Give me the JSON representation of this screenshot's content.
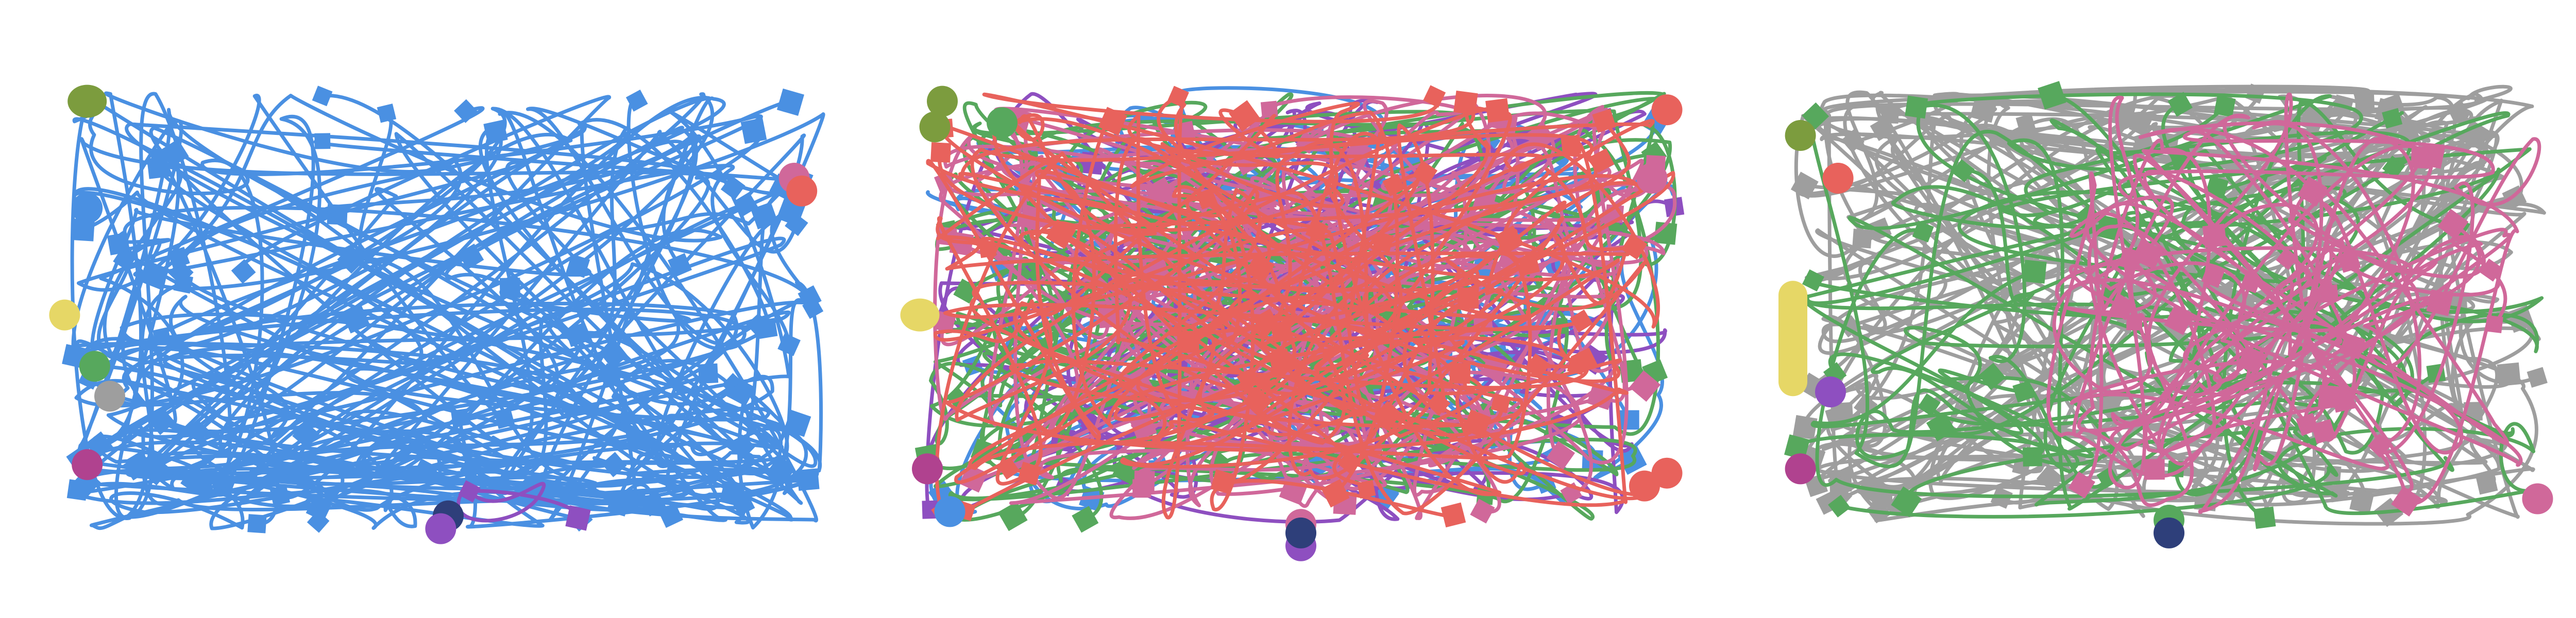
{
  "colors": {
    "blue": "#4a90e2",
    "red": "#e8625c",
    "green": "#57a85d",
    "pink": "#d0689a",
    "purple": "#8e4fc0",
    "gray": "#9e9e9e",
    "olive": "#7c9c3e",
    "yellow": "#e6d766",
    "magenta": "#b0428f",
    "navy": "#2e3f7a"
  },
  "panels": [
    {
      "name": "left",
      "traces": [
        {
          "color": "blue",
          "count": 40,
          "seed": 11,
          "density": "edges-bottom",
          "width": 7
        },
        {
          "color": "purple",
          "count": 1,
          "seed": 91,
          "density": "bottom-short",
          "width": 7
        }
      ],
      "markers": [
        {
          "color": "olive",
          "shape": "blob",
          "u": 0.02,
          "v": 0.02
        },
        {
          "color": "blue",
          "shape": "circle",
          "u": 0.02,
          "v": 0.27
        },
        {
          "color": "yellow",
          "shape": "circle",
          "u": -0.01,
          "v": 0.52
        },
        {
          "color": "green",
          "shape": "circle",
          "u": 0.03,
          "v": 0.64
        },
        {
          "color": "gray",
          "shape": "circle",
          "u": 0.05,
          "v": 0.71
        },
        {
          "color": "magenta",
          "shape": "circle",
          "u": 0.02,
          "v": 0.87
        },
        {
          "color": "pink",
          "shape": "circle",
          "u": 0.96,
          "v": 0.2
        },
        {
          "color": "red",
          "shape": "circle",
          "u": 0.97,
          "v": 0.23
        },
        {
          "color": "navy",
          "shape": "circle",
          "u": 0.5,
          "v": 0.99
        },
        {
          "color": "purple",
          "shape": "circle",
          "u": 0.49,
          "v": 1.02
        }
      ]
    },
    {
      "name": "middle",
      "traces": [
        {
          "color": "blue",
          "count": 16,
          "seed": 21,
          "density": "uniform",
          "width": 7
        },
        {
          "color": "purple",
          "count": 14,
          "seed": 22,
          "density": "uniform",
          "width": 7
        },
        {
          "color": "green",
          "count": 20,
          "seed": 23,
          "density": "uniform",
          "width": 7
        },
        {
          "color": "pink",
          "count": 22,
          "seed": 24,
          "density": "uniform",
          "width": 7
        },
        {
          "color": "red",
          "count": 24,
          "seed": 25,
          "density": "uniform",
          "width": 7
        }
      ],
      "markers": [
        {
          "color": "olive",
          "shape": "circle",
          "u": 0.02,
          "v": 0.02
        },
        {
          "color": "olive",
          "shape": "circle",
          "u": 0.01,
          "v": 0.08
        },
        {
          "color": "green",
          "shape": "circle",
          "u": 0.1,
          "v": 0.07
        },
        {
          "color": "yellow",
          "shape": "blob",
          "u": -0.01,
          "v": 0.52
        },
        {
          "color": "magenta",
          "shape": "circle",
          "u": 0.0,
          "v": 0.88
        },
        {
          "color": "blue",
          "shape": "circle",
          "u": 0.03,
          "v": 0.98
        },
        {
          "color": "red",
          "shape": "circle",
          "u": 0.99,
          "v": 0.04
        },
        {
          "color": "pink",
          "shape": "circle",
          "u": 0.97,
          "v": 0.2
        },
        {
          "color": "red",
          "shape": "circle",
          "u": 0.99,
          "v": 0.89
        },
        {
          "color": "red",
          "shape": "circle",
          "u": 0.96,
          "v": 0.92
        },
        {
          "color": "pink",
          "shape": "circle",
          "u": 0.5,
          "v": 1.01
        },
        {
          "color": "purple",
          "shape": "circle",
          "u": 0.5,
          "v": 1.06
        },
        {
          "color": "navy",
          "shape": "circle",
          "u": 0.5,
          "v": 1.03
        }
      ]
    },
    {
      "name": "right",
      "traces": [
        {
          "color": "gray",
          "count": 30,
          "seed": 31,
          "density": "edges",
          "width": 7
        },
        {
          "color": "green",
          "count": 16,
          "seed": 32,
          "density": "uniform",
          "width": 7
        },
        {
          "color": "pink",
          "count": 14,
          "seed": 33,
          "density": "right",
          "width": 7
        }
      ],
      "markers": [
        {
          "color": "olive",
          "shape": "circle",
          "u": 0.01,
          "v": 0.1
        },
        {
          "color": "red",
          "shape": "circle",
          "u": 0.06,
          "v": 0.2
        },
        {
          "color": "yellow",
          "shape": "bar",
          "u": 0.0,
          "v": 0.52
        },
        {
          "color": "magenta",
          "shape": "circle",
          "u": 0.01,
          "v": 0.88
        },
        {
          "color": "purple",
          "shape": "circle",
          "u": 0.05,
          "v": 0.7
        },
        {
          "color": "pink",
          "shape": "circle",
          "u": 0.99,
          "v": 0.95
        },
        {
          "color": "green",
          "shape": "circle",
          "u": 0.5,
          "v": 1.0
        },
        {
          "color": "navy",
          "shape": "circle",
          "u": 0.5,
          "v": 1.03
        }
      ]
    }
  ]
}
